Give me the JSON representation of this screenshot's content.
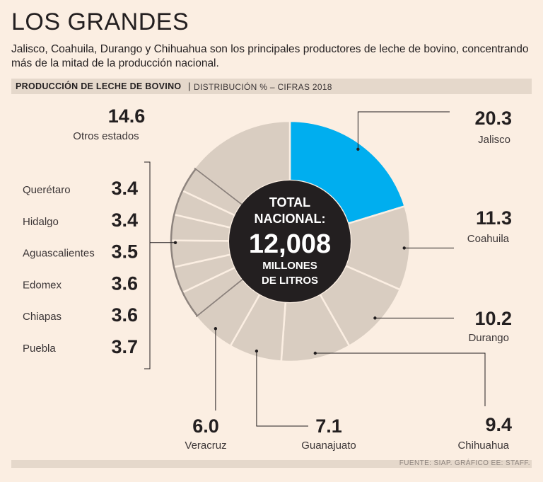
{
  "header": {
    "title": "LOS GRANDES",
    "subtitle": "Jalisco, Coahuila, Durango y Chihuahua son los principales productores de leche de bovino, concentrando más de la mitad de la producción nacional.",
    "band_title": "PRODUCCIÓN DE LECHE DE BOVINO",
    "band_separator": "|",
    "band_subtitle": "DISTRIBUCIÓN % – CIFRAS 2018"
  },
  "center": {
    "line1": "TOTAL",
    "line2": "NACIONAL:",
    "value": "12,008",
    "line3": "MILLONES",
    "line4": "DE LITROS"
  },
  "colors": {
    "background": "#fbeee2",
    "band": "#e5d8cb",
    "highlight": "#00aeef",
    "slice": "#d9cdc1",
    "center": "#231f20"
  },
  "chart_data": {
    "type": "pie",
    "title": "PRODUCCIÓN DE LECHE DE BOVINO",
    "subtitle": "DISTRIBUCIÓN % – CIFRAS 2018",
    "unit": "%",
    "total_label": "12,008 millones de litros",
    "categories": [
      "Jalisco",
      "Coahuila",
      "Durango",
      "Chihuahua",
      "Guanajuato",
      "Veracruz",
      "Puebla",
      "Chiapas",
      "Edomex",
      "Aguascalientes",
      "Hidalgo",
      "Querétaro",
      "Otros estados"
    ],
    "values": [
      20.3,
      11.3,
      10.2,
      9.4,
      7.1,
      6.0,
      3.7,
      3.6,
      3.6,
      3.5,
      3.4,
      3.4,
      14.6
    ],
    "value_labels": [
      "20.3",
      "11.3",
      "10.2",
      "9.4",
      "7.1",
      "6.0",
      "3.7",
      "3.6",
      "3.6",
      "3.5",
      "3.4",
      "3.4",
      "14.6"
    ],
    "highlighted": "Jalisco"
  },
  "source": "FUENTE: SIAP. GRÁFICO EE: STAFF."
}
